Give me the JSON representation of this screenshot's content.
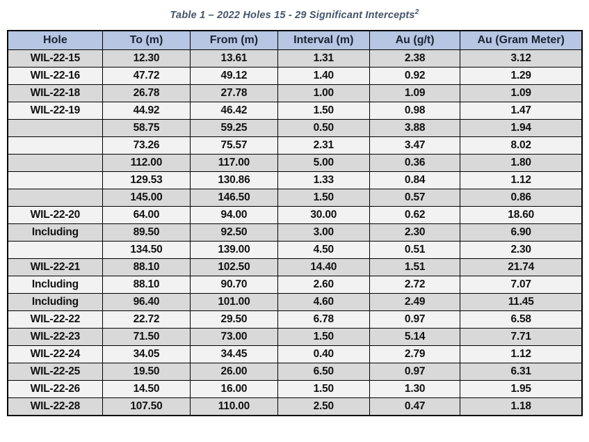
{
  "page": {
    "title_prefix": "Table 1 – 2022 Holes 15 - 29 Significant Intercepts",
    "title_superscript": "2"
  },
  "table": {
    "columns": [
      "Hole",
      "To (m)",
      "From (m)",
      "Interval (m)",
      "Au (g/t)",
      "Au (Gram Meter)"
    ],
    "rows": [
      {
        "hole": "WIL-22-15",
        "to": "12.30",
        "from": "13.61",
        "interval": "1.31",
        "au_gpt": "2.38",
        "au_gram_meter": "3.12"
      },
      {
        "hole": "WIL-22-16",
        "to": "47.72",
        "from": "49.12",
        "interval": "1.40",
        "au_gpt": "0.92",
        "au_gram_meter": "1.29"
      },
      {
        "hole": "WIL-22-18",
        "to": "26.78",
        "from": "27.78",
        "interval": "1.00",
        "au_gpt": "1.09",
        "au_gram_meter": "1.09"
      },
      {
        "hole": "WIL-22-19",
        "to": "44.92",
        "from": "46.42",
        "interval": "1.50",
        "au_gpt": "0.98",
        "au_gram_meter": "1.47"
      },
      {
        "hole": "",
        "to": "58.75",
        "from": "59.25",
        "interval": "0.50",
        "au_gpt": "3.88",
        "au_gram_meter": "1.94"
      },
      {
        "hole": "",
        "to": "73.26",
        "from": "75.57",
        "interval": "2.31",
        "au_gpt": "3.47",
        "au_gram_meter": "8.02"
      },
      {
        "hole": "",
        "to": "112.00",
        "from": "117.00",
        "interval": "5.00",
        "au_gpt": "0.36",
        "au_gram_meter": "1.80"
      },
      {
        "hole": "",
        "to": "129.53",
        "from": "130.86",
        "interval": "1.33",
        "au_gpt": "0.84",
        "au_gram_meter": "1.12"
      },
      {
        "hole": "",
        "to": "145.00",
        "from": "146.50",
        "interval": "1.50",
        "au_gpt": "0.57",
        "au_gram_meter": "0.86"
      },
      {
        "hole": "WIL-22-20",
        "to": "64.00",
        "from": "94.00",
        "interval": "30.00",
        "au_gpt": "0.62",
        "au_gram_meter": "18.60"
      },
      {
        "hole": "Including",
        "to": "89.50",
        "from": "92.50",
        "interval": "3.00",
        "au_gpt": "2.30",
        "au_gram_meter": "6.90"
      },
      {
        "hole": "",
        "to": "134.50",
        "from": "139.00",
        "interval": "4.50",
        "au_gpt": "0.51",
        "au_gram_meter": "2.30"
      },
      {
        "hole": "WIL-22-21",
        "to": "88.10",
        "from": "102.50",
        "interval": "14.40",
        "au_gpt": "1.51",
        "au_gram_meter": "21.74"
      },
      {
        "hole": "Including",
        "to": "88.10",
        "from": "90.70",
        "interval": "2.60",
        "au_gpt": "2.72",
        "au_gram_meter": "7.07"
      },
      {
        "hole": "Including",
        "to": "96.40",
        "from": "101.00",
        "interval": "4.60",
        "au_gpt": "2.49",
        "au_gram_meter": "11.45"
      },
      {
        "hole": "WIL-22-22",
        "to": "22.72",
        "from": "29.50",
        "interval": "6.78",
        "au_gpt": "0.97",
        "au_gram_meter": "6.58"
      },
      {
        "hole": "WIL-22-23",
        "to": "71.50",
        "from": "73.00",
        "interval": "1.50",
        "au_gpt": "5.14",
        "au_gram_meter": "7.71"
      },
      {
        "hole": "WIL-22-24",
        "to": "34.05",
        "from": "34.45",
        "interval": "0.40",
        "au_gpt": "2.79",
        "au_gram_meter": "1.12"
      },
      {
        "hole": "WIL-22-25",
        "to": "19.50",
        "from": "26.00",
        "interval": "6.50",
        "au_gpt": "0.97",
        "au_gram_meter": "6.31"
      },
      {
        "hole": "WIL-22-26",
        "to": "14.50",
        "from": "16.00",
        "interval": "1.50",
        "au_gpt": "1.30",
        "au_gram_meter": "1.95"
      },
      {
        "hole": "WIL-22-28",
        "to": "107.50",
        "from": "110.00",
        "interval": "2.50",
        "au_gpt": "0.47",
        "au_gram_meter": "1.18"
      }
    ]
  },
  "colors": {
    "header_bg": "#b6c6e3",
    "row_shade_dark": "#d9d9d9",
    "row_shade_light": "#f2f2f2",
    "border": "#000000",
    "title_text": "#44546a"
  }
}
